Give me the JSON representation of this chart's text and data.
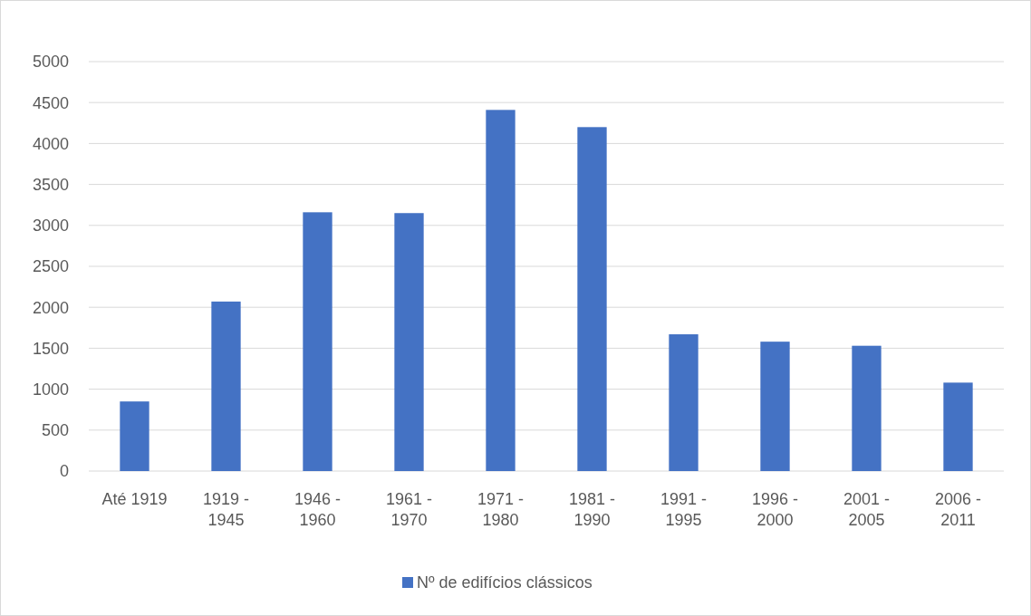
{
  "chart_data": {
    "type": "bar",
    "categories": [
      "Até 1919",
      "1919 - 1945",
      "1946 - 1960",
      "1961 - 1970",
      "1971 - 1980",
      "1981 - 1990",
      "1991 - 1995",
      "1996 - 2000",
      "2001 - 2005",
      "2006 - 2011"
    ],
    "series": [
      {
        "name": "Nº de edifícios clássicos",
        "color": "#4472c4",
        "values": [
          850,
          2070,
          3160,
          3150,
          4410,
          4200,
          1670,
          1580,
          1530,
          1080
        ]
      }
    ],
    "ylim": [
      0,
      5000
    ],
    "yticks": [
      0,
      500,
      1000,
      1500,
      2000,
      2500,
      3000,
      3500,
      4000,
      4500,
      5000
    ],
    "grid": "y",
    "legend": "bottom"
  }
}
